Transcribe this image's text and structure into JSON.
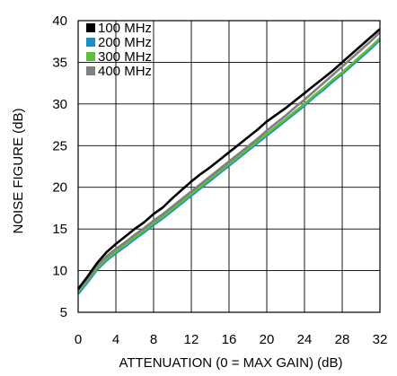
{
  "chart_data": {
    "type": "line",
    "xlabel": "ATTENUATION (0 = MAX GAIN) (dB)",
    "ylabel": "NOISE FIGURE (dB)",
    "xlim": [
      0,
      32
    ],
    "ylim": [
      5,
      40
    ],
    "xticks": [
      0,
      4,
      8,
      12,
      16,
      20,
      24,
      28,
      32
    ],
    "yticks": [
      5,
      10,
      15,
      20,
      25,
      30,
      35,
      40
    ],
    "grid": true,
    "legend_position": "top-left",
    "series": [
      {
        "name": "100 MHz",
        "color": "#000000",
        "points": [
          [
            0,
            7.8
          ],
          [
            1,
            9.3
          ],
          [
            2,
            10.9
          ],
          [
            3,
            12.2
          ],
          [
            4,
            13.2
          ],
          [
            5,
            14.1
          ],
          [
            6,
            15.0
          ],
          [
            7,
            15.8
          ],
          [
            8,
            16.8
          ],
          [
            9,
            17.6
          ],
          [
            10,
            18.7
          ],
          [
            11,
            19.7
          ],
          [
            12,
            20.7
          ],
          [
            13,
            21.6
          ],
          [
            14,
            22.4
          ],
          [
            15,
            23.3
          ],
          [
            16,
            24.2
          ],
          [
            17,
            25.1
          ],
          [
            18,
            26.0
          ],
          [
            19,
            26.9
          ],
          [
            20,
            27.9
          ],
          [
            21,
            28.7
          ],
          [
            22,
            29.5
          ],
          [
            23,
            30.4
          ],
          [
            24,
            31.3
          ],
          [
            25,
            32.2
          ],
          [
            26,
            33.1
          ],
          [
            27,
            34.0
          ],
          [
            28,
            35.0
          ],
          [
            29,
            36.0
          ],
          [
            30,
            37.0
          ],
          [
            31,
            38.0
          ],
          [
            32,
            39.0
          ]
        ]
      },
      {
        "name": "200 MHz",
        "color": "#1a8fc4",
        "points": [
          [
            0,
            7.2
          ],
          [
            1,
            8.6
          ],
          [
            2,
            10.1
          ],
          [
            3,
            11.2
          ],
          [
            4,
            12.1
          ],
          [
            5,
            12.9
          ],
          [
            6,
            13.8
          ],
          [
            7,
            14.6
          ],
          [
            8,
            15.5
          ],
          [
            9,
            16.3
          ],
          [
            10,
            17.2
          ],
          [
            11,
            18.1
          ],
          [
            12,
            19.0
          ],
          [
            13,
            19.9
          ],
          [
            14,
            20.8
          ],
          [
            15,
            21.7
          ],
          [
            16,
            22.6
          ],
          [
            17,
            23.5
          ],
          [
            18,
            24.4
          ],
          [
            19,
            25.3
          ],
          [
            20,
            26.2
          ],
          [
            21,
            27.1
          ],
          [
            22,
            28.0
          ],
          [
            23,
            28.9
          ],
          [
            24,
            29.8
          ],
          [
            25,
            30.8
          ],
          [
            26,
            31.7
          ],
          [
            27,
            32.7
          ],
          [
            28,
            33.6
          ],
          [
            29,
            34.6
          ],
          [
            30,
            35.6
          ],
          [
            31,
            36.6
          ],
          [
            32,
            37.7
          ]
        ]
      },
      {
        "name": "300 MHz",
        "color": "#5bbf3a",
        "points": [
          [
            0,
            7.4
          ],
          [
            1,
            8.8
          ],
          [
            2,
            10.3
          ],
          [
            3,
            11.4
          ],
          [
            4,
            12.3
          ],
          [
            5,
            13.1
          ],
          [
            6,
            14.0
          ],
          [
            7,
            14.8
          ],
          [
            8,
            15.7
          ],
          [
            9,
            16.5
          ],
          [
            10,
            17.4
          ],
          [
            11,
            18.3
          ],
          [
            12,
            19.2
          ],
          [
            13,
            20.1
          ],
          [
            14,
            21.0
          ],
          [
            15,
            21.9
          ],
          [
            16,
            22.8
          ],
          [
            17,
            23.7
          ],
          [
            18,
            24.6
          ],
          [
            19,
            25.5
          ],
          [
            20,
            26.4
          ],
          [
            21,
            27.3
          ],
          [
            22,
            28.2
          ],
          [
            23,
            29.1
          ],
          [
            24,
            30.0
          ],
          [
            25,
            31.0
          ],
          [
            26,
            31.9
          ],
          [
            27,
            32.9
          ],
          [
            28,
            33.8
          ],
          [
            29,
            34.8
          ],
          [
            30,
            35.8
          ],
          [
            31,
            36.8
          ],
          [
            32,
            37.9
          ]
        ]
      },
      {
        "name": "400 MHz",
        "color": "#808080",
        "points": [
          [
            0,
            7.6
          ],
          [
            1,
            9.0
          ],
          [
            2,
            10.6
          ],
          [
            3,
            11.7
          ],
          [
            4,
            12.6
          ],
          [
            5,
            13.4
          ],
          [
            6,
            14.3
          ],
          [
            7,
            15.1
          ],
          [
            8,
            16.0
          ],
          [
            9,
            16.8
          ],
          [
            10,
            17.7
          ],
          [
            11,
            18.6
          ],
          [
            12,
            19.5
          ],
          [
            13,
            20.4
          ],
          [
            14,
            21.3
          ],
          [
            15,
            22.2
          ],
          [
            16,
            23.1
          ],
          [
            17,
            24.0
          ],
          [
            18,
            24.9
          ],
          [
            19,
            25.8
          ],
          [
            20,
            26.8
          ],
          [
            21,
            27.7
          ],
          [
            22,
            28.6
          ],
          [
            23,
            29.6
          ],
          [
            24,
            30.5
          ],
          [
            25,
            31.5
          ],
          [
            26,
            32.5
          ],
          [
            27,
            33.5
          ],
          [
            28,
            34.5
          ],
          [
            29,
            35.5
          ],
          [
            30,
            36.5
          ],
          [
            31,
            37.5
          ],
          [
            32,
            38.6
          ]
        ]
      }
    ]
  }
}
